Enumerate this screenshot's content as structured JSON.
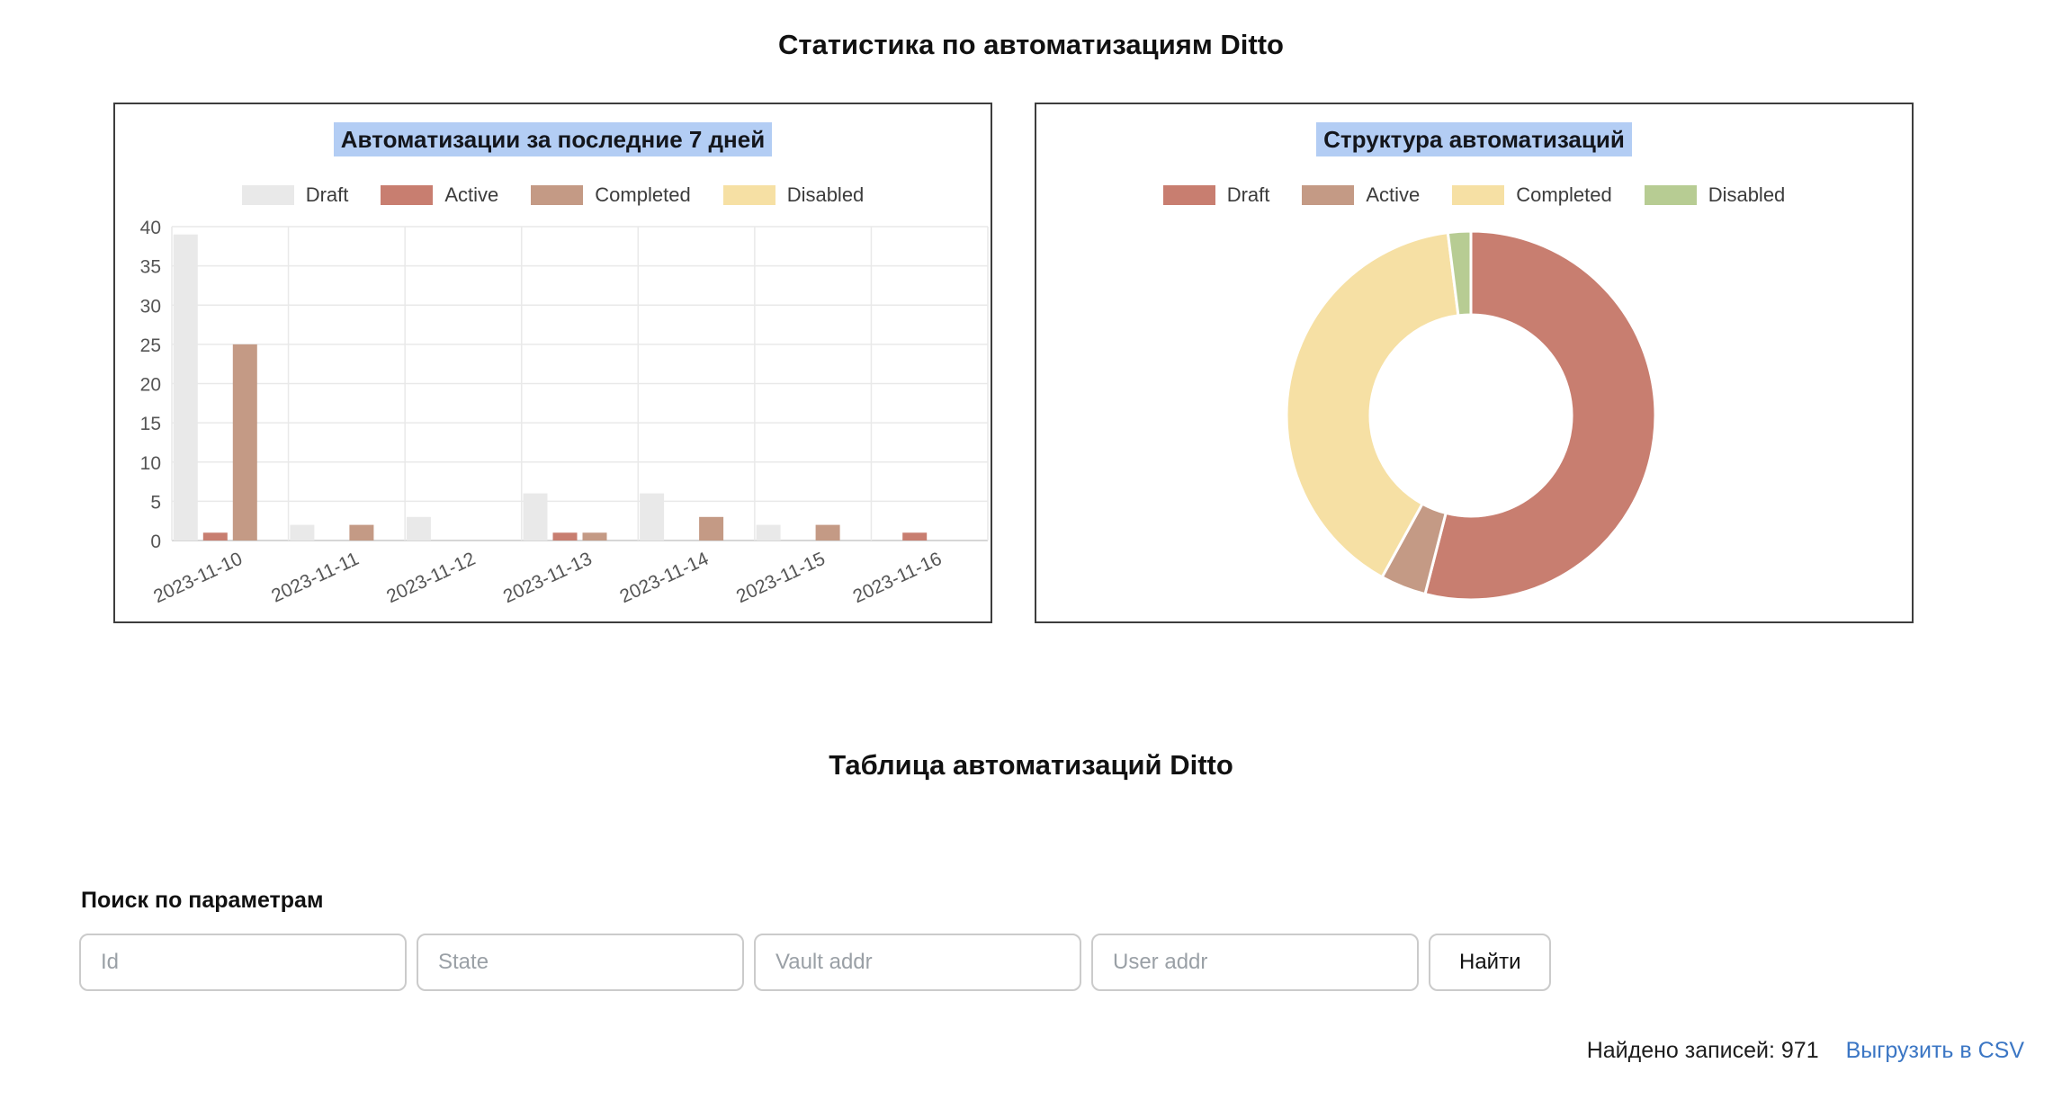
{
  "page": {
    "title": "Статистика по автоматизациям Ditto"
  },
  "colors": {
    "highlight": "#b3cdf4",
    "panel_border": "#3d3d3d",
    "link_blue": "#3b76c4",
    "grid": "#e9e9e9",
    "axis_text": "#555555"
  },
  "chart_data": [
    {
      "type": "bar",
      "title": "Автоматизации за последние 7 дней",
      "categories": [
        "2023-11-10",
        "2023-11-11",
        "2023-11-12",
        "2023-11-13",
        "2023-11-14",
        "2023-11-15",
        "2023-11-16"
      ],
      "series": [
        {
          "name": "Draft",
          "color": "#e9e9e9",
          "values": [
            39,
            2,
            3,
            6,
            6,
            2,
            0
          ]
        },
        {
          "name": "Active",
          "color": "#c87e70",
          "values": [
            1,
            0,
            0,
            1,
            0,
            0,
            1
          ]
        },
        {
          "name": "Completed",
          "color": "#c49a85",
          "values": [
            25,
            2,
            0,
            1,
            3,
            2,
            0
          ]
        },
        {
          "name": "Disabled",
          "color": "#f6e0a4",
          "values": [
            0,
            0,
            0,
            0,
            0,
            0,
            0
          ]
        }
      ],
      "ylim": [
        0,
        40
      ],
      "ytick_step": 5,
      "legend_position": "top",
      "grid": true
    },
    {
      "type": "pie",
      "subtype": "donut",
      "title": "Структура автоматизаций",
      "segments": [
        {
          "name": "Draft",
          "color": "#c87e70",
          "value": 54
        },
        {
          "name": "Active",
          "color": "#c49a85",
          "value": 4
        },
        {
          "name": "Completed",
          "color": "#f6e0a4",
          "value": 40
        },
        {
          "name": "Disabled",
          "color": "#b7cc93",
          "value": 2
        }
      ],
      "units": "percent",
      "legend_position": "top"
    }
  ],
  "table_section": {
    "title": "Таблица автоматизаций Ditto",
    "search_label": "Поиск по параметрам",
    "inputs": [
      {
        "placeholder": "Id"
      },
      {
        "placeholder": "State"
      },
      {
        "placeholder": "Vault addr"
      },
      {
        "placeholder": "User addr"
      }
    ],
    "search_button": "Найти",
    "records_text": "Найдено записей: 971",
    "export_csv": "Выгрузить в CSV"
  }
}
